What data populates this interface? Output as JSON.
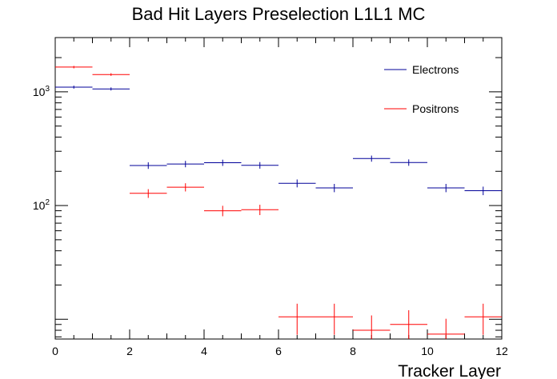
{
  "chart_data": {
    "type": "scatter",
    "title": "Bad Hit Layers Preselection L1L1 MC",
    "xlabel": "Tracker Layer",
    "ylabel": "",
    "xlim": [
      0,
      12
    ],
    "ylim": [
      6.7,
      3000
    ],
    "yscale": "log",
    "x_ticks": [
      0,
      2,
      4,
      6,
      8,
      10,
      12
    ],
    "x_tick_labels": [
      "0",
      "2",
      "4",
      "6",
      "8",
      "10",
      "12"
    ],
    "y_ticks": [
      100,
      1000
    ],
    "y_tick_labels": [
      "10^2",
      "10^3"
    ],
    "grid": false,
    "legend_position": "top-right",
    "series": [
      {
        "name": "Electrons",
        "color": "#000099",
        "bin_edges": [
          0,
          1,
          2,
          3,
          4,
          5,
          6,
          7,
          8,
          9,
          10,
          11,
          12
        ],
        "values": [
          1100,
          1060,
          225,
          232,
          238,
          226,
          157,
          143,
          259,
          239,
          143,
          135
        ],
        "errors": [
          33,
          33,
          15,
          15,
          15,
          15,
          12.5,
          12,
          16,
          15.5,
          12,
          11.6
        ]
      },
      {
        "name": "Positrons",
        "color": "#ff0000",
        "bin_edges": [
          0,
          1,
          2,
          3,
          4,
          5,
          6,
          7,
          8,
          9,
          10,
          11,
          12
        ],
        "values": [
          1650,
          1420,
          128,
          145,
          90,
          92,
          10.5,
          10.5,
          8.0,
          9.0,
          7.4,
          10.5
        ],
        "errors": [
          41,
          38,
          11.3,
          12,
          9.5,
          9.6,
          3.2,
          3.2,
          2.8,
          3.0,
          2.7,
          3.2
        ]
      }
    ]
  }
}
